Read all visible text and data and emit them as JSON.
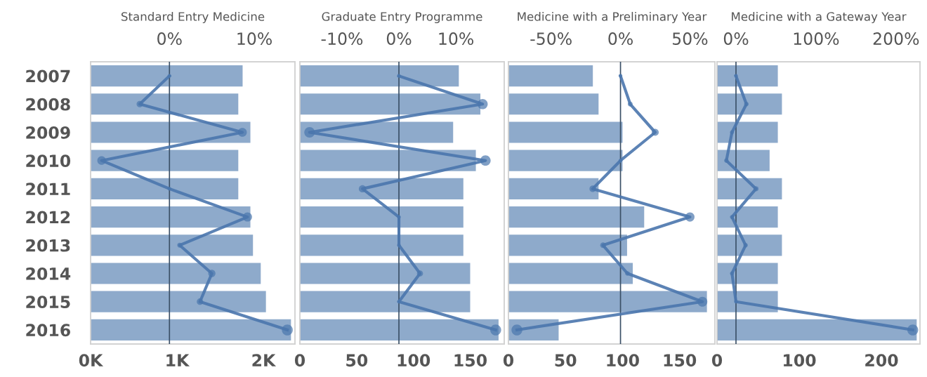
{
  "chart_data": [
    {
      "type": "bar",
      "orientation": "horizontal",
      "title": "Standard Entry Medicine",
      "categories": [
        "2007",
        "2008",
        "2009",
        "2010",
        "2011",
        "2012",
        "2013",
        "2014",
        "2015",
        "2016"
      ],
      "series": [
        {
          "color": "#8eaacb",
          "values": [
            1760,
            1710,
            1850,
            1710,
            1710,
            1850,
            1880,
            1970,
            2030,
            2320
          ]
        },
        {
          "type": "line",
          "axis": "x2",
          "color": "#4a76ad",
          "values": [
            0,
            -3.5,
            8.6,
            -8.0,
            0,
            9.2,
            1.2,
            5.0,
            3.6,
            13.9
          ]
        }
      ],
      "xlim": [
        0,
        2366
      ],
      "xticks": [
        {
          "value": 0,
          "label": "0K"
        },
        {
          "value": 1000,
          "label": "1K"
        },
        {
          "value": 2000,
          "label": "2K"
        }
      ],
      "x2lim": [
        -9.3,
        14.8
      ],
      "x2ticks": [
        {
          "value": 0,
          "label": "0%"
        },
        {
          "value": 10,
          "label": "10%"
        }
      ],
      "ref_lines": [
        {
          "axis": "x2",
          "value": 0,
          "color": "#3a4f66"
        }
      ],
      "marker": "circle"
    },
    {
      "type": "bar",
      "orientation": "horizontal",
      "title": "Graduate Entry Programme",
      "categories": [
        "2007",
        "2008",
        "2009",
        "2010",
        "2011",
        "2012",
        "2013",
        "2014",
        "2015",
        "2016"
      ],
      "series": [
        {
          "color": "#8eaacb",
          "values": [
            140,
            159,
            135,
            155,
            144,
            144,
            144,
            150,
            150,
            175
          ]
        },
        {
          "type": "line",
          "axis": "x2",
          "color": "#4a76ad",
          "values": [
            0,
            14.7,
            -15.7,
            15.2,
            -6.4,
            0,
            0,
            3.7,
            0,
            17.0
          ]
        }
      ],
      "xlim": [
        0,
        180
      ],
      "xticks": [
        0,
        50,
        100,
        150
      ],
      "x2lim": [
        -17.4,
        18.5
      ],
      "x2ticks": [
        {
          "value": -10,
          "label": "-10%"
        },
        {
          "value": 0,
          "label": "0%"
        },
        {
          "value": 10,
          "label": "10%"
        }
      ],
      "ref_lines": [
        {
          "axis": "x2",
          "value": 0,
          "color": "#3a4f66"
        }
      ],
      "marker": "circle",
      "tick_labels": "x"
    },
    {
      "type": "bar",
      "orientation": "horizontal",
      "title": "Medicine with a Preliminary Year",
      "categories": [
        "2007",
        "2008",
        "2009",
        "2010",
        "2011",
        "2012",
        "2013",
        "2014",
        "2015",
        "2016"
      ],
      "series": [
        {
          "color": "#8eaacb",
          "values": [
            74,
            79,
            100,
            100,
            79,
            119,
            104,
            109,
            174,
            44
          ]
        },
        {
          "type": "line",
          "axis": "x2",
          "color": "#4a76ad",
          "values": [
            0,
            7,
            25,
            0,
            -20,
            50,
            -12.6,
            5,
            59,
            -74.6
          ]
        }
      ],
      "xlim": [
        0,
        181
      ],
      "xticks": [
        0,
        50,
        100,
        150
      ],
      "x2lim": [
        -80.7,
        68
      ],
      "x2ticks": [
        {
          "value": -50,
          "label": "-50%"
        },
        {
          "value": 0,
          "label": "0%"
        },
        {
          "value": 50,
          "label": "50%"
        }
      ],
      "ref_lines": [
        {
          "axis": "x2",
          "value": 0,
          "color": "#3a4f66"
        }
      ],
      "marker": "circle",
      "tick_labels": "x"
    },
    {
      "type": "bar",
      "orientation": "horizontal",
      "title": "Medicine with a Gateway Year",
      "categories": [
        "2007",
        "2008",
        "2009",
        "2010",
        "2011",
        "2012",
        "2013",
        "2014",
        "2015",
        "2016"
      ],
      "series": [
        {
          "color": "#8eaacb",
          "values": [
            74,
            79,
            74,
            64,
            79,
            74,
            79,
            74,
            74,
            243
          ]
        },
        {
          "type": "line",
          "axis": "x2",
          "color": "#4a76ad",
          "values": [
            0,
            13,
            -5,
            -12,
            25,
            -5,
            12,
            -5,
            0,
            221
          ]
        }
      ],
      "xlim": [
        0,
        247
      ],
      "xticks": [
        0,
        100,
        200
      ],
      "x2lim": [
        -23.7,
        230
      ],
      "x2ticks": [
        {
          "value": 0,
          "label": "0%"
        },
        {
          "value": 100,
          "label": "100%"
        },
        {
          "value": 200,
          "label": "200%"
        }
      ],
      "ref_lines": [
        {
          "axis": "x2",
          "value": 0,
          "color": "#3a4f66"
        }
      ],
      "marker": "circle",
      "tick_labels": "x"
    }
  ]
}
